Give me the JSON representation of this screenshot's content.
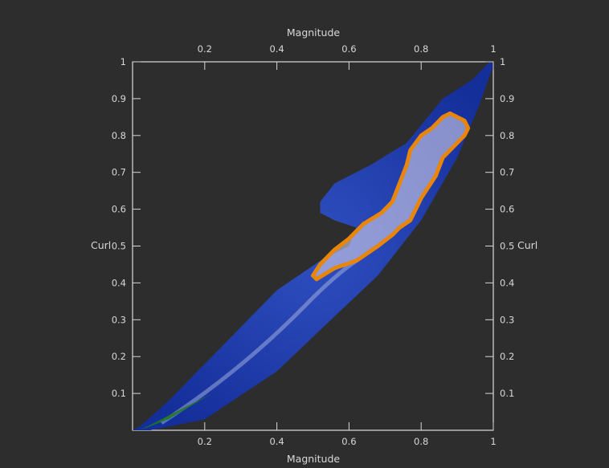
{
  "chart_data": {
    "type": "area",
    "title": "",
    "xlabel": "Magnitude",
    "ylabel": "Curl",
    "xlim": [
      0,
      1
    ],
    "ylim": [
      0,
      1
    ],
    "x_ticks": [
      "0.2",
      "0.4",
      "0.6",
      "0.8",
      "1"
    ],
    "x_tick_values": [
      0.2,
      0.4,
      0.6,
      0.8,
      1.0
    ],
    "y_ticks": [
      "0.1",
      "0.2",
      "0.3",
      "0.4",
      "0.5",
      "0.6",
      "0.7",
      "0.8",
      "0.9",
      "1"
    ],
    "y_tick_values": [
      0.1,
      0.2,
      0.3,
      0.4,
      0.5,
      0.6,
      0.7,
      0.8,
      0.9,
      1.0
    ],
    "grid": false,
    "colors": {
      "background": "#2d2d2d",
      "density": "#1a3aa8",
      "density_light": "#b8c4e8",
      "low_density": "#1e7a1e",
      "selection": "#e8860c"
    },
    "density_region": [
      [
        0.0,
        0.0
      ],
      [
        0.05,
        0.0
      ],
      [
        0.2,
        0.03
      ],
      [
        0.4,
        0.16
      ],
      [
        0.55,
        0.3
      ],
      [
        0.68,
        0.42
      ],
      [
        0.8,
        0.57
      ],
      [
        0.9,
        0.74
      ],
      [
        0.96,
        0.88
      ],
      [
        1.0,
        0.99
      ],
      [
        0.99,
        1.0
      ],
      [
        0.94,
        0.95
      ],
      [
        0.86,
        0.9
      ],
      [
        0.76,
        0.78
      ],
      [
        0.66,
        0.72
      ],
      [
        0.56,
        0.67
      ],
      [
        0.52,
        0.62
      ],
      [
        0.52,
        0.59
      ],
      [
        0.56,
        0.57
      ],
      [
        0.62,
        0.55
      ],
      [
        0.6,
        0.5
      ],
      [
        0.52,
        0.46
      ],
      [
        0.4,
        0.38
      ],
      [
        0.3,
        0.28
      ],
      [
        0.2,
        0.18
      ],
      [
        0.1,
        0.08
      ],
      [
        0.02,
        0.01
      ]
    ],
    "selection_polygon": [
      [
        0.51,
        0.41
      ],
      [
        0.56,
        0.44
      ],
      [
        0.62,
        0.46
      ],
      [
        0.68,
        0.5
      ],
      [
        0.72,
        0.53
      ],
      [
        0.74,
        0.55
      ],
      [
        0.77,
        0.57
      ],
      [
        0.8,
        0.63
      ],
      [
        0.84,
        0.69
      ],
      [
        0.86,
        0.74
      ],
      [
        0.9,
        0.78
      ],
      [
        0.92,
        0.8
      ],
      [
        0.93,
        0.82
      ],
      [
        0.92,
        0.84
      ],
      [
        0.88,
        0.86
      ],
      [
        0.86,
        0.85
      ],
      [
        0.83,
        0.82
      ],
      [
        0.8,
        0.8
      ],
      [
        0.77,
        0.76
      ],
      [
        0.76,
        0.72
      ],
      [
        0.74,
        0.67
      ],
      [
        0.72,
        0.62
      ],
      [
        0.69,
        0.59
      ],
      [
        0.64,
        0.56
      ],
      [
        0.6,
        0.52
      ],
      [
        0.56,
        0.49
      ],
      [
        0.52,
        0.45
      ],
      [
        0.5,
        0.42
      ]
    ]
  }
}
